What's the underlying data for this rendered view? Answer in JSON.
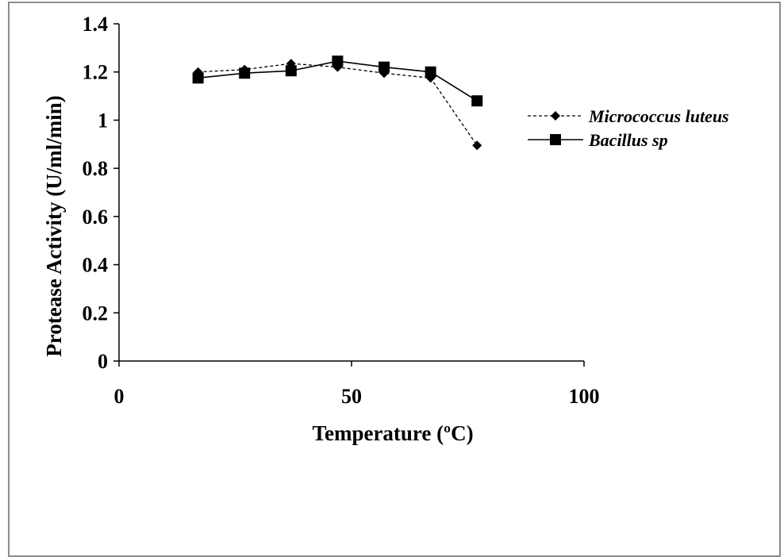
{
  "chart_data": {
    "type": "line",
    "title": "",
    "xlabel": "Temperature (ºC)",
    "ylabel": "Protease Activity (U/ml/min)",
    "xlim": [
      0,
      100
    ],
    "ylim": [
      0,
      1.4
    ],
    "x_ticks": [
      "0",
      "50",
      "100"
    ],
    "y_ticks": [
      "0",
      "0.2",
      "0.4",
      "0.6",
      "0.8",
      "1",
      "1.2",
      "1.4"
    ],
    "grid": false,
    "legend_position": "right",
    "series": [
      {
        "name": "Micrococcus luteus",
        "marker": "diamond",
        "line_style": "dashed",
        "color": "#000000",
        "x": [
          17,
          27,
          37,
          47,
          57,
          67,
          77
        ],
        "y": [
          1.2,
          1.21,
          1.235,
          1.22,
          1.195,
          1.175,
          0.895
        ]
      },
      {
        "name": "Bacillus sp",
        "marker": "square",
        "line_style": "solid",
        "color": "#000000",
        "x": [
          17,
          27,
          37,
          47,
          57,
          67,
          77
        ],
        "y": [
          1.175,
          1.195,
          1.205,
          1.245,
          1.22,
          1.2,
          1.08
        ]
      }
    ]
  }
}
